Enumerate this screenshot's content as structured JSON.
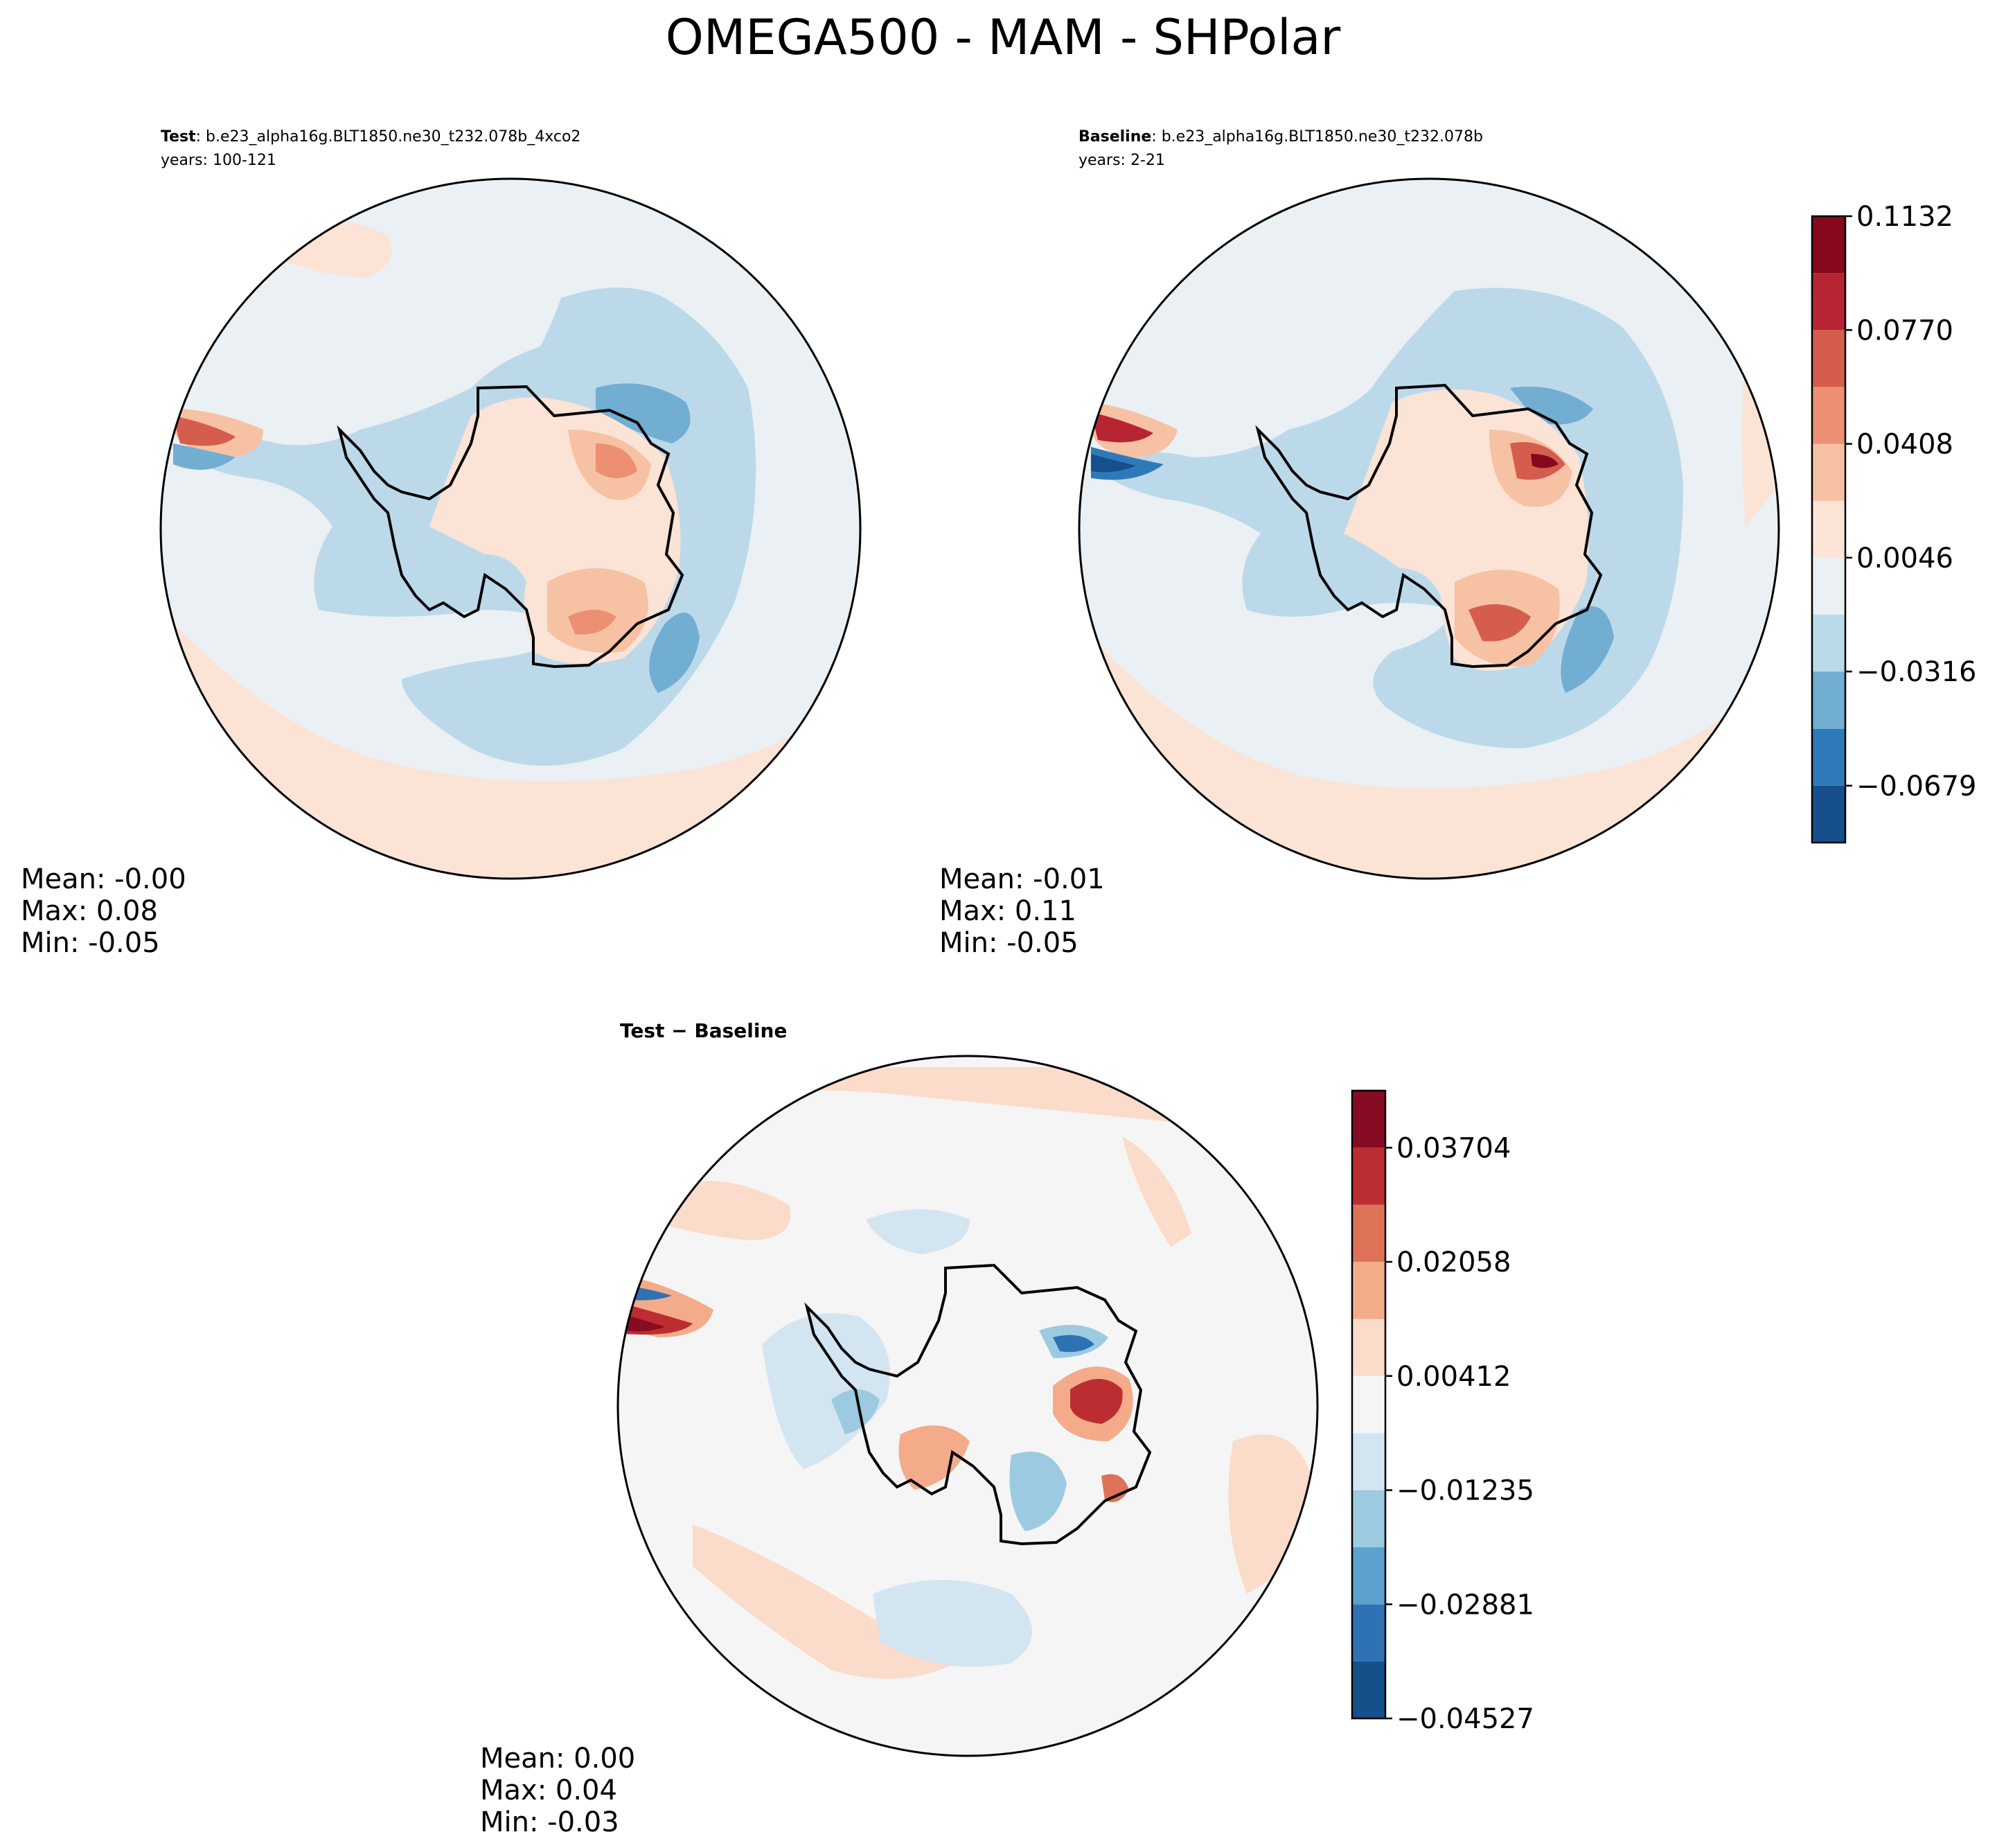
{
  "figure_title": "OMEGA500 - MAM - SHPolar",
  "colors": {
    "main_scale": [
      "#164f8c",
      "#2e7ab8",
      "#72add2",
      "#bcd9ea",
      "#eaf0f3",
      "#fbe3d6",
      "#f7c1a4",
      "#ec8f72",
      "#d55d4d",
      "#b82532",
      "#85081f"
    ],
    "diff_scale": [
      "#16508a",
      "#2d73b3",
      "#5ba2cf",
      "#9ccae1",
      "#d3e5f0",
      "#f5f5f5",
      "#fbdbc9",
      "#f3ab8a",
      "#de7259",
      "#bc2d32",
      "#880b24"
    ],
    "land_outline": "#000000"
  },
  "chart_data": [
    {
      "type": "heatmap",
      "projection": "south-polar-stereographic",
      "title_bold": "Test",
      "title_rest": ": b.e23_alpha16g.BLT1850.ne30_t232.078b_4xco2",
      "subtitle": "years: 100-121",
      "stats": {
        "mean": "Mean: -0.00",
        "max": "Max:  0.08",
        "min": "Min: -0.05"
      },
      "colorbar": "shared-main"
    },
    {
      "type": "heatmap",
      "projection": "south-polar-stereographic",
      "title_bold": "Baseline",
      "title_rest": ": b.e23_alpha16g.BLT1850.ne30_t232.078b",
      "subtitle": "years: 2-21",
      "stats": {
        "mean": "Mean: -0.01",
        "max": "Max:  0.11",
        "min": "Min: -0.05"
      },
      "colorbar": "main"
    },
    {
      "type": "heatmap",
      "projection": "south-polar-stereographic",
      "title_bold": "Test − Baseline",
      "stats": {
        "mean": "Mean:  0.00",
        "max": "Max:  0.04",
        "min": "Min: -0.03"
      },
      "colorbar": "diff"
    }
  ],
  "colorbars": {
    "main": {
      "levels": [
        -0.086,
        -0.0679,
        -0.0498,
        -0.0316,
        -0.0135,
        0.0046,
        0.0227,
        0.0408,
        0.0589,
        0.077,
        0.0951,
        0.1132
      ],
      "tick_labels": [
        "−0.0679",
        "−0.0316",
        "0.0046",
        "0.0408",
        "0.0770",
        "0.1132"
      ]
    },
    "diff": {
      "levels": [
        -0.04527,
        -0.03704,
        -0.02881,
        -0.02058,
        -0.01235,
        -0.00412,
        0.00412,
        0.01235,
        0.02058,
        0.02881,
        0.03704,
        0.04527
      ],
      "tick_labels": [
        "−0.04527",
        "−0.02881",
        "−0.01235",
        "0.00412",
        "0.02058",
        "0.03704"
      ]
    }
  }
}
